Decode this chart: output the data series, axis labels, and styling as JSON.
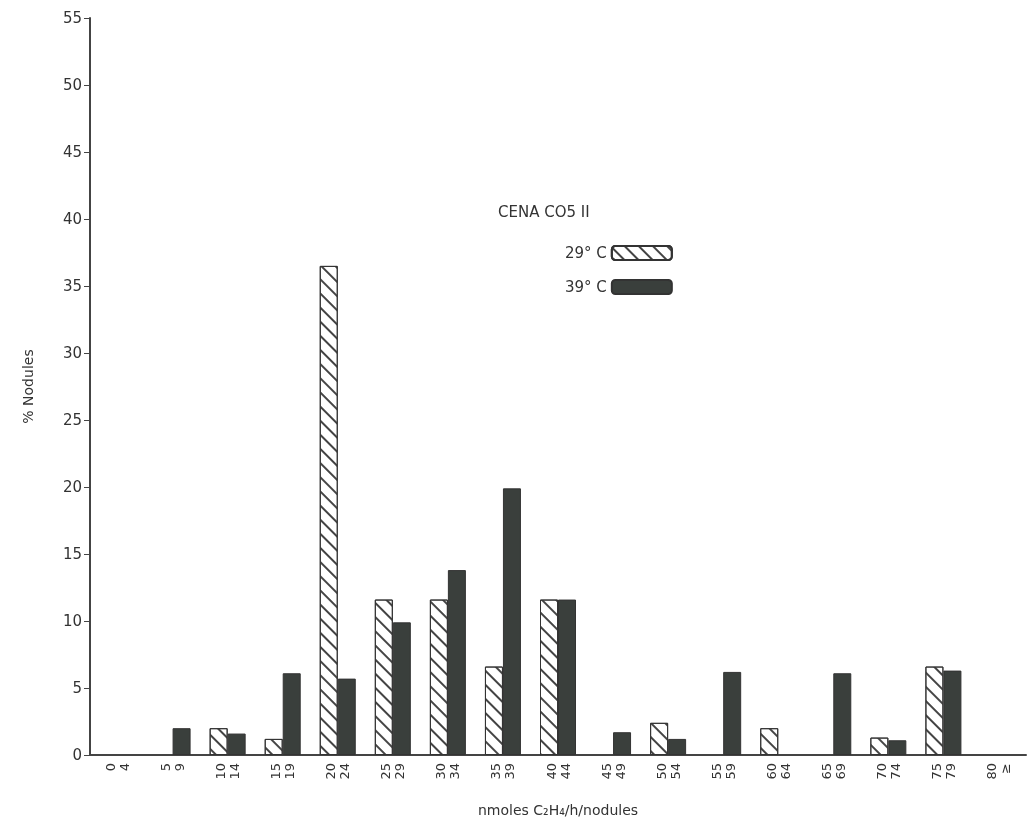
{
  "chart_data": {
    "type": "bar",
    "xlabel": "nmoles C₂H₄/h/nodules",
    "ylabel": "% Nodules",
    "legend_title": "CENA CO5 II",
    "categories": [
      "0\n4",
      "5\n9",
      "10\n14",
      "15\n19",
      "20\n24",
      "25\n29",
      "30\n34",
      "35\n39",
      "40\n44",
      "45\n49",
      "50\n54",
      "55\n59",
      "60\n64",
      "65\n69",
      "70\n74",
      "75\n79",
      "80\n≥"
    ],
    "series": [
      {
        "name": "29° C",
        "color": "#ffffff",
        "values": [
          0,
          0,
          2.0,
          1.2,
          36.5,
          11.6,
          11.6,
          6.6,
          11.6,
          0,
          2.4,
          0,
          2.0,
          0,
          1.3,
          6.6,
          0
        ]
      },
      {
        "name": "39° C",
        "color": "#3a3f3c",
        "values": [
          0,
          2.0,
          1.6,
          6.1,
          5.7,
          9.9,
          13.8,
          19.9,
          11.6,
          1.7,
          1.2,
          6.2,
          0,
          6.1,
          1.1,
          6.3,
          0
        ]
      }
    ],
    "ylim": [
      0,
      55
    ],
    "yticks": [
      0,
      5,
      10,
      15,
      20,
      25,
      30,
      35,
      40,
      45,
      50,
      55
    ],
    "grid": false,
    "legend": "top"
  }
}
